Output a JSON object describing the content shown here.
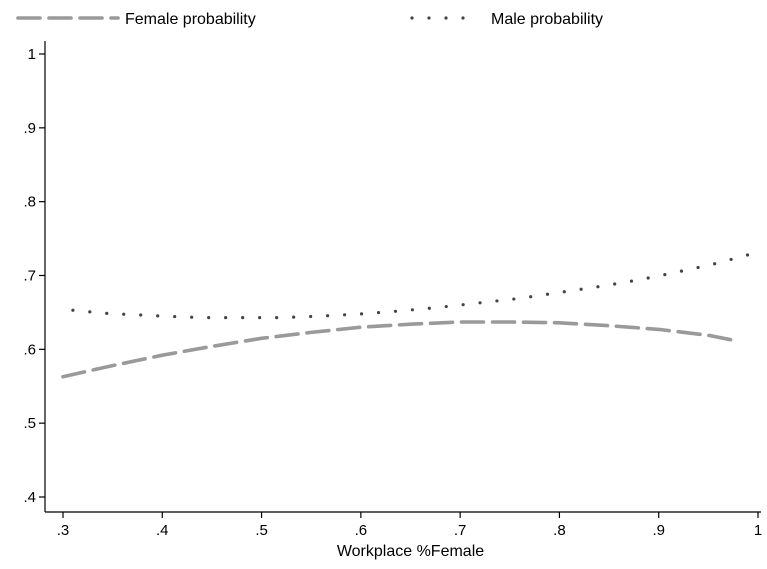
{
  "chart_data": {
    "type": "line",
    "title": "",
    "xlabel": "Workplace %Female",
    "ylabel": "",
    "xlim": [
      0.3,
      1.0
    ],
    "ylim": [
      0.4,
      1.0
    ],
    "x_ticks": [
      ".3",
      ".4",
      ".5",
      ".6",
      ".7",
      ".8",
      ".9",
      "1"
    ],
    "y_ticks": [
      ".4",
      ".5",
      ".6",
      ".7",
      ".8",
      ".9",
      "1"
    ],
    "grid": false,
    "legend_position": "top",
    "series": [
      {
        "name": "Female probability",
        "style": "dashed",
        "color": "#9a9a9a",
        "x": [
          0.3,
          0.35,
          0.4,
          0.45,
          0.5,
          0.55,
          0.6,
          0.65,
          0.7,
          0.75,
          0.8,
          0.85,
          0.9,
          0.95,
          0.98
        ],
        "y": [
          0.563,
          0.578,
          0.592,
          0.604,
          0.615,
          0.623,
          0.63,
          0.634,
          0.637,
          0.637,
          0.636,
          0.632,
          0.627,
          0.619,
          0.611
        ]
      },
      {
        "name": "Male probability",
        "style": "dotted",
        "color": "#444444",
        "x": [
          0.31,
          0.34,
          0.37,
          0.4,
          0.44,
          0.48,
          0.52,
          0.56,
          0.6,
          0.64,
          0.68,
          0.72,
          0.76,
          0.8,
          0.84,
          0.88,
          0.92,
          0.96,
          0.99
        ],
        "y": [
          0.653,
          0.649,
          0.647,
          0.645,
          0.643,
          0.643,
          0.643,
          0.645,
          0.648,
          0.652,
          0.657,
          0.663,
          0.669,
          0.677,
          0.685,
          0.694,
          0.705,
          0.717,
          0.728
        ]
      }
    ]
  }
}
